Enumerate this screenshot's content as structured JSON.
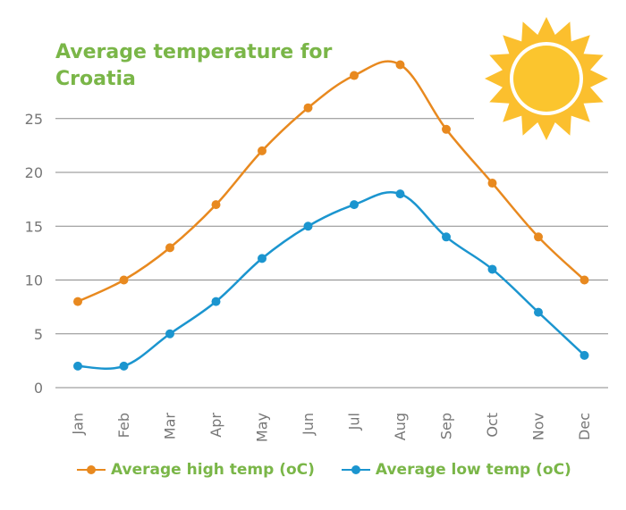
{
  "title": "Average temperature for Croatia",
  "colors": {
    "high": "#e8891f",
    "low": "#1b95cf",
    "title": "#7ab648",
    "grid": "#8a8a8a",
    "axis_text": "#777777",
    "sun_outer": "#fbbf2e",
    "sun_inner": "#fbc52e"
  },
  "icons": [
    "sun-icon"
  ],
  "chart_data": {
    "type": "line",
    "title": "Average temperature for Croatia",
    "categories": [
      "Jan",
      "Feb",
      "Mar",
      "Apr",
      "May",
      "Jun",
      "Jul",
      "Aug",
      "Sep",
      "Oct",
      "Nov",
      "Dec"
    ],
    "series": [
      {
        "name": "Average high temp (oC)",
        "values": [
          8,
          10,
          13,
          17,
          22,
          26,
          29,
          30,
          24,
          19,
          14,
          10
        ]
      },
      {
        "name": "Average low temp (oC)",
        "values": [
          2,
          2,
          5,
          8,
          12,
          15,
          17,
          18,
          14,
          11,
          7,
          3
        ]
      }
    ],
    "yticks": [
      0,
      5,
      10,
      15,
      20,
      25
    ],
    "ylim": [
      0,
      30
    ],
    "xlabel": "",
    "ylabel": "",
    "grid": true,
    "legend_position": "bottom"
  },
  "legend": {
    "high_label": "Average high temp (oC)",
    "low_label": "Average low temp (oC)"
  }
}
